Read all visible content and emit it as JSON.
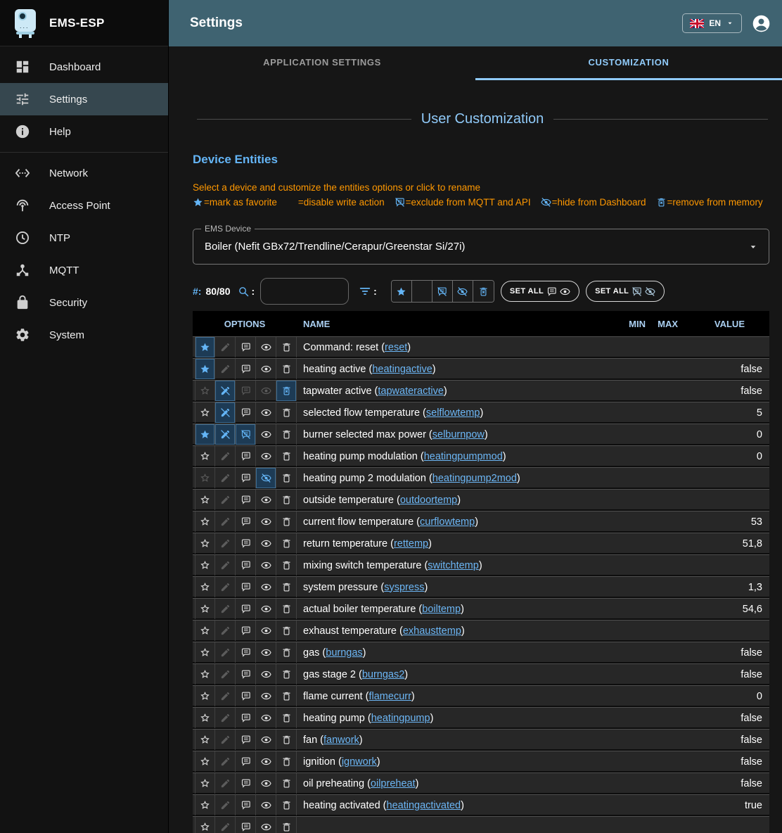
{
  "app_title": "EMS-ESP",
  "topbar": {
    "title": "Settings",
    "language": "EN"
  },
  "sidebar": {
    "items": [
      {
        "label": "Dashboard",
        "icon": "dashboard",
        "selected": false
      },
      {
        "label": "Settings",
        "icon": "tune",
        "selected": true
      },
      {
        "label": "Help",
        "icon": "info",
        "selected": false,
        "divider_after": true
      },
      {
        "label": "Network",
        "icon": "ethernet",
        "selected": false
      },
      {
        "label": "Access Point",
        "icon": "access-point",
        "selected": false
      },
      {
        "label": "NTP",
        "icon": "clock",
        "selected": false
      },
      {
        "label": "MQTT",
        "icon": "hub",
        "selected": false
      },
      {
        "label": "Security",
        "icon": "lock",
        "selected": false
      },
      {
        "label": "System",
        "icon": "gear",
        "selected": false
      }
    ]
  },
  "tabs": [
    {
      "label": "APPLICATION SETTINGS",
      "selected": false
    },
    {
      "label": "CUSTOMIZATION",
      "selected": true
    }
  ],
  "customization": {
    "title": "User Customization",
    "section_title": "Device Entities",
    "hint": "Select a device and customize the entities options or click to rename",
    "legend": [
      {
        "icon": "star",
        "text": "=mark as favorite"
      },
      {
        "icon": "edit-off",
        "text": "=disable write action"
      },
      {
        "icon": "comment-off",
        "text": "=exclude from MQTT and API"
      },
      {
        "icon": "eye-off",
        "text": "=hide from Dashboard"
      },
      {
        "icon": "trash-x",
        "text": "=remove from memory"
      }
    ],
    "device_select": {
      "label": "EMS Device",
      "value": "Boiler (Nefit GBx72/Trendline/Cerapur/Greenstar Si/27i)"
    },
    "filter": {
      "count_prefix": "#:",
      "count": "80/80",
      "search_value": "",
      "search_placeholder": "",
      "toggles": [
        "star",
        "edit-off",
        "comment-off",
        "eye-off",
        "trash-x"
      ],
      "set_all_buttons": [
        {
          "label": "SET ALL",
          "icons": [
            "comment",
            "eye"
          ]
        },
        {
          "label": "SET ALL",
          "icons": [
            "comment-off",
            "eye-off"
          ]
        }
      ]
    },
    "table": {
      "headers": {
        "options": "OPTIONS",
        "name": "NAME",
        "min": "MIN",
        "max": "MAX",
        "value": "VALUE"
      },
      "rows": [
        {
          "name": "Command: reset",
          "short": "reset",
          "min": "",
          "max": "",
          "value": "",
          "opts": [
            "active",
            "dim",
            "normal",
            "normal",
            "normal"
          ]
        },
        {
          "name": "heating active",
          "short": "heatingactive",
          "min": "",
          "max": "",
          "value": "false",
          "opts": [
            "active",
            "dim",
            "normal",
            "normal",
            "normal"
          ]
        },
        {
          "name": "tapwater active",
          "short": "tapwateractive",
          "min": "",
          "max": "",
          "value": "false",
          "opts": [
            "dim",
            "active",
            "dim",
            "dim",
            "active"
          ]
        },
        {
          "name": "selected flow temperature",
          "short": "selflowtemp",
          "min": "",
          "max": "",
          "value": "5",
          "opts": [
            "normal",
            "active",
            "normal",
            "normal",
            "normal"
          ]
        },
        {
          "name": "burner selected max power",
          "short": "selburnpow",
          "min": "",
          "max": "",
          "value": "0",
          "opts": [
            "active",
            "active",
            "active",
            "normal",
            "normal"
          ]
        },
        {
          "name": "heating pump modulation",
          "short": "heatingpumpmod",
          "min": "",
          "max": "",
          "value": "0",
          "opts": [
            "normal",
            "dim",
            "normal",
            "normal",
            "normal"
          ]
        },
        {
          "name": "heating pump 2 modulation",
          "short": "heatingpump2mod",
          "min": "",
          "max": "",
          "value": "",
          "opts": [
            "dim",
            "dim",
            "normal",
            "active",
            "normal"
          ]
        },
        {
          "name": "outside temperature",
          "short": "outdoortemp",
          "min": "",
          "max": "",
          "value": "",
          "opts": [
            "normal",
            "dim",
            "normal",
            "normal",
            "normal"
          ]
        },
        {
          "name": "current flow temperature",
          "short": "curflowtemp",
          "min": "",
          "max": "",
          "value": "53",
          "opts": [
            "normal",
            "dim",
            "normal",
            "normal",
            "normal"
          ]
        },
        {
          "name": "return temperature",
          "short": "rettemp",
          "min": "",
          "max": "",
          "value": "51,8",
          "opts": [
            "normal",
            "dim",
            "normal",
            "normal",
            "normal"
          ]
        },
        {
          "name": "mixing switch temperature",
          "short": "switchtemp",
          "min": "",
          "max": "",
          "value": "",
          "opts": [
            "normal",
            "dim",
            "normal",
            "normal",
            "normal"
          ]
        },
        {
          "name": "system pressure",
          "short": "syspress",
          "min": "",
          "max": "",
          "value": "1,3",
          "opts": [
            "normal",
            "dim",
            "normal",
            "normal",
            "normal"
          ]
        },
        {
          "name": "actual boiler temperature",
          "short": "boiltemp",
          "min": "",
          "max": "",
          "value": "54,6",
          "opts": [
            "normal",
            "dim",
            "normal",
            "normal",
            "normal"
          ]
        },
        {
          "name": "exhaust temperature",
          "short": "exhausttemp",
          "min": "",
          "max": "",
          "value": "",
          "opts": [
            "normal",
            "dim",
            "normal",
            "normal",
            "normal"
          ]
        },
        {
          "name": "gas",
          "short": "burngas",
          "min": "",
          "max": "",
          "value": "false",
          "opts": [
            "normal",
            "dim",
            "normal",
            "normal",
            "normal"
          ]
        },
        {
          "name": "gas stage 2",
          "short": "burngas2",
          "min": "",
          "max": "",
          "value": "false",
          "opts": [
            "normal",
            "dim",
            "normal",
            "normal",
            "normal"
          ]
        },
        {
          "name": "flame current",
          "short": "flamecurr",
          "min": "",
          "max": "",
          "value": "0",
          "opts": [
            "normal",
            "dim",
            "normal",
            "normal",
            "normal"
          ]
        },
        {
          "name": "heating pump",
          "short": "heatingpump",
          "min": "",
          "max": "",
          "value": "false",
          "opts": [
            "normal",
            "dim",
            "normal",
            "normal",
            "normal"
          ]
        },
        {
          "name": "fan",
          "short": "fanwork",
          "min": "",
          "max": "",
          "value": "false",
          "opts": [
            "normal",
            "dim",
            "normal",
            "normal",
            "normal"
          ]
        },
        {
          "name": "ignition",
          "short": "ignwork",
          "min": "",
          "max": "",
          "value": "false",
          "opts": [
            "normal",
            "dim",
            "normal",
            "normal",
            "normal"
          ]
        },
        {
          "name": "oil preheating",
          "short": "oilpreheat",
          "min": "",
          "max": "",
          "value": "false",
          "opts": [
            "normal",
            "dim",
            "normal",
            "normal",
            "normal"
          ]
        },
        {
          "name": "heating activated",
          "short": "heatingactivated",
          "min": "",
          "max": "",
          "value": "true",
          "opts": [
            "normal",
            "dim",
            "normal",
            "normal",
            "normal"
          ]
        },
        {
          "name": "",
          "short": "",
          "min": "",
          "max": "",
          "value": "",
          "opts": [
            "normal",
            "dim",
            "normal",
            "normal",
            "normal"
          ]
        }
      ]
    }
  },
  "colors": {
    "accent": "#64b5f6",
    "tab_active": "#90caf9",
    "topbar": "#3f6371",
    "legend_orange": "#ff9800",
    "link": "#6cb6f5"
  }
}
